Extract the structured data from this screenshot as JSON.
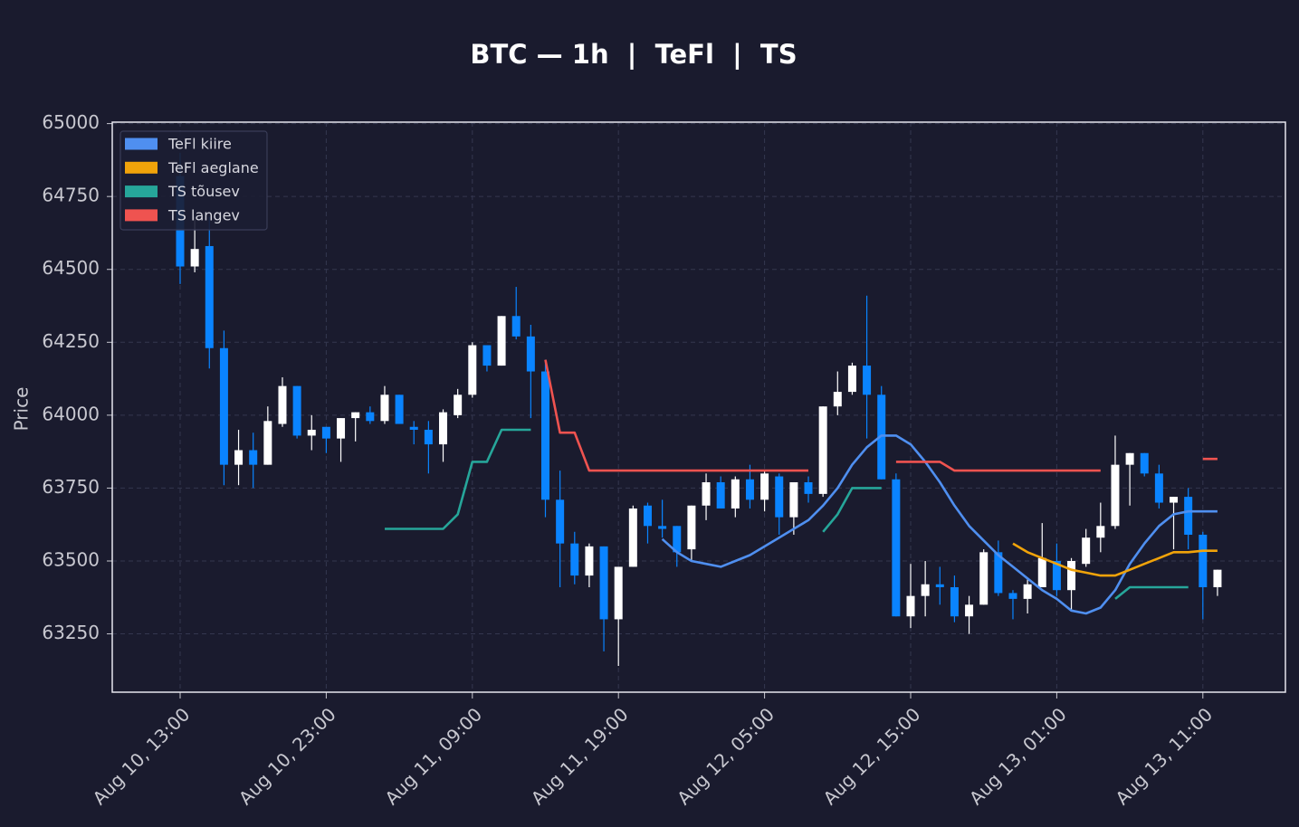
{
  "chart_data": {
    "type": "candlestick",
    "title": "BTC — 1h  |  TeFl  |  TS",
    "y_label": "Price",
    "categories": [
      "Aug 10, 13:00",
      null,
      null,
      null,
      null,
      null,
      null,
      null,
      null,
      null,
      "Aug 10, 23:00",
      null,
      null,
      null,
      null,
      null,
      null,
      null,
      null,
      null,
      "Aug 11, 09:00",
      null,
      null,
      null,
      null,
      null,
      null,
      null,
      null,
      null,
      "Aug 11, 19:00",
      null,
      null,
      null,
      null,
      null,
      null,
      null,
      null,
      null,
      "Aug 12, 05:00",
      null,
      null,
      null,
      null,
      null,
      null,
      null,
      null,
      null,
      "Aug 12, 15:00",
      null,
      null,
      null,
      null,
      null,
      null,
      null,
      null,
      null,
      "Aug 13, 01:00",
      null,
      null,
      null,
      null,
      null,
      null,
      null,
      null,
      null,
      "Aug 13, 11:00",
      null
    ],
    "open": [
      64820,
      64510,
      64580,
      64230,
      63830,
      63880,
      63830,
      63970,
      64100,
      63930,
      63960,
      63920,
      63990,
      64010,
      63980,
      64070,
      63960,
      63950,
      63900,
      64000,
      64070,
      64240,
      64170,
      64340,
      64270,
      64150,
      63710,
      63560,
      63450,
      63550,
      63300,
      63480,
      63690,
      63620,
      63620,
      63540,
      63690,
      63770,
      63680,
      63780,
      63710,
      63790,
      63650,
      63770,
      63730,
      64030,
      64080,
      64170,
      64070,
      63780,
      63310,
      63380,
      63420,
      63410,
      63310,
      63350,
      63530,
      63390,
      63370,
      63410,
      63500,
      63400,
      63490,
      63580,
      63620,
      63830,
      63870,
      63800,
      63700,
      63720,
      63590,
      63410
    ],
    "high": [
      64900,
      64680,
      64680,
      64290,
      63950,
      63940,
      64030,
      64130,
      64100,
      64000,
      63960,
      63990,
      64010,
      64030,
      64100,
      64070,
      63980,
      63980,
      64020,
      64090,
      64250,
      64240,
      64340,
      64440,
      64310,
      64190,
      63810,
      63600,
      63560,
      63550,
      63480,
      63690,
      63700,
      63710,
      63620,
      63690,
      63800,
      63790,
      63790,
      63830,
      63810,
      63800,
      63770,
      63790,
      64030,
      64150,
      64180,
      64410,
      64100,
      63800,
      63490,
      63500,
      63480,
      63450,
      63380,
      63540,
      63570,
      63400,
      63440,
      63630,
      63560,
      63510,
      63610,
      63700,
      63930,
      63870,
      63870,
      63830,
      63720,
      63750,
      63600,
      63470
    ],
    "low": [
      64450,
      64490,
      64160,
      63760,
      63760,
      63750,
      63830,
      63960,
      63920,
      63880,
      63870,
      63840,
      63910,
      63970,
      63970,
      63970,
      63900,
      63800,
      63840,
      63990,
      64060,
      64150,
      64170,
      64260,
      63990,
      63650,
      63410,
      63420,
      63410,
      63190,
      63140,
      63480,
      63560,
      63580,
      63480,
      63500,
      63640,
      63680,
      63650,
      63680,
      63670,
      63590,
      63590,
      63700,
      63720,
      64000,
      64070,
      63920,
      63780,
      63310,
      63270,
      63310,
      63350,
      63290,
      63250,
      63350,
      63380,
      63300,
      63320,
      63410,
      63380,
      63330,
      63480,
      63530,
      63610,
      63690,
      63790,
      63680,
      63540,
      63540,
      63300,
      63380
    ],
    "close": [
      64510,
      64570,
      64230,
      63830,
      63880,
      63830,
      63980,
      64100,
      63930,
      63950,
      63920,
      63990,
      64010,
      63980,
      64070,
      63970,
      63950,
      63900,
      64010,
      64070,
      64240,
      64170,
      64340,
      64270,
      64150,
      63710,
      63560,
      63450,
      63550,
      63300,
      63480,
      63680,
      63620,
      63610,
      63530,
      63690,
      63770,
      63680,
      63780,
      63710,
      63800,
      63650,
      63770,
      63730,
      64030,
      64080,
      64170,
      64070,
      63780,
      63310,
      63380,
      63420,
      63410,
      63310,
      63350,
      63530,
      63390,
      63370,
      63420,
      63510,
      63400,
      63500,
      63580,
      63620,
      63830,
      63870,
      63800,
      63700,
      63720,
      63590,
      63410,
      63470
    ],
    "up_color": "#ffffff",
    "down_color": "#0a84ff",
    "series": [
      {
        "name": "TeFl kiire",
        "color": "#4f8ff0",
        "values": [
          null,
          null,
          null,
          null,
          null,
          null,
          null,
          null,
          null,
          null,
          null,
          null,
          null,
          null,
          null,
          null,
          null,
          null,
          null,
          null,
          null,
          null,
          null,
          null,
          null,
          null,
          null,
          null,
          null,
          null,
          null,
          null,
          null,
          63575,
          63530,
          63500,
          63490,
          63480,
          63500,
          63520,
          63550,
          63580,
          63610,
          63640,
          63690,
          63750,
          63830,
          63890,
          63930,
          63930,
          63900,
          63840,
          63770,
          63690,
          63620,
          63570,
          63520,
          63480,
          63440,
          63400,
          63370,
          63330,
          63320,
          63340,
          63400,
          63490,
          63560,
          63620,
          63660,
          63670,
          63670,
          63670
        ]
      },
      {
        "name": "TeFl aeglane",
        "color": "#f0a30a",
        "values": [
          null,
          null,
          null,
          null,
          null,
          null,
          null,
          null,
          null,
          null,
          null,
          null,
          null,
          null,
          null,
          null,
          null,
          null,
          null,
          null,
          null,
          null,
          null,
          null,
          null,
          null,
          null,
          null,
          null,
          null,
          null,
          null,
          null,
          null,
          null,
          null,
          null,
          null,
          null,
          null,
          null,
          null,
          null,
          null,
          null,
          null,
          null,
          null,
          null,
          null,
          null,
          null,
          null,
          null,
          null,
          null,
          null,
          63560,
          63530,
          63510,
          63490,
          63470,
          63460,
          63450,
          63450,
          63470,
          63490,
          63510,
          63530,
          63530,
          63535,
          63535
        ]
      },
      {
        "name": "TS tõusev",
        "color": "#26a69a",
        "values": [
          null,
          null,
          null,
          null,
          null,
          null,
          null,
          null,
          null,
          null,
          null,
          null,
          null,
          null,
          63610,
          63610,
          63610,
          63610,
          63610,
          63660,
          63840,
          63840,
          63950,
          63950,
          63950,
          null,
          null,
          null,
          null,
          null,
          null,
          null,
          null,
          null,
          null,
          null,
          null,
          null,
          null,
          null,
          null,
          null,
          null,
          null,
          63600,
          63660,
          63750,
          63750,
          63750,
          null,
          null,
          null,
          null,
          null,
          null,
          null,
          null,
          null,
          null,
          null,
          null,
          null,
          null,
          null,
          63370,
          63410,
          63410,
          63410,
          63410,
          63410,
          null,
          null
        ]
      },
      {
        "name": "TS langev",
        "color": "#ef5350",
        "values": [
          null,
          null,
          null,
          null,
          null,
          null,
          null,
          null,
          null,
          null,
          null,
          null,
          null,
          null,
          null,
          null,
          null,
          null,
          null,
          null,
          null,
          null,
          null,
          null,
          null,
          64190,
          63940,
          63940,
          63810,
          63810,
          63810,
          63810,
          63810,
          63810,
          63810,
          63810,
          63810,
          63810,
          63810,
          63810,
          63810,
          63810,
          63810,
          63810,
          null,
          null,
          null,
          null,
          null,
          63840,
          63840,
          63840,
          63840,
          63810,
          63810,
          63810,
          63810,
          63810,
          63810,
          63810,
          63810,
          63810,
          63810,
          63810,
          null,
          null,
          null,
          null,
          null,
          null,
          63850,
          63850
        ]
      }
    ],
    "ylim": [
      63050,
      65005
    ],
    "yticks": [
      63250,
      63500,
      63750,
      64000,
      64250,
      64500,
      64750,
      65000
    ],
    "grid": true,
    "legend": "upper left"
  }
}
